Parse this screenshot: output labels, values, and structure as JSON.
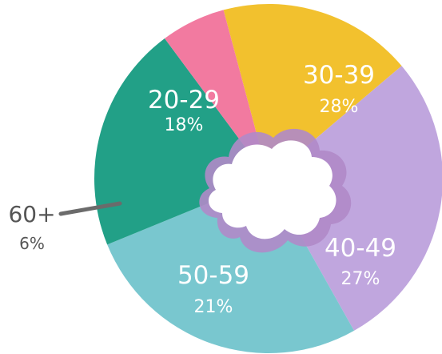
{
  "chart_data": {
    "type": "pie",
    "categories": [
      "20-29",
      "30-39",
      "40-49",
      "50-59",
      "60+"
    ],
    "values": [
      18,
      28,
      27,
      21,
      6
    ],
    "value_labels": [
      "18%",
      "28%",
      "27%",
      "21%",
      "6%"
    ],
    "colors": [
      "#f2c12e",
      "#c0a6de",
      "#79c7cf",
      "#22a087",
      "#f27aa0"
    ],
    "style": "donut with cloud-shaped center",
    "center_icon": "cloud-icon",
    "center_colors": {
      "fill": "#ffffff",
      "outline": "#b08ac8"
    },
    "callout_color": "#6b6b6b",
    "legend": "none",
    "title": ""
  }
}
